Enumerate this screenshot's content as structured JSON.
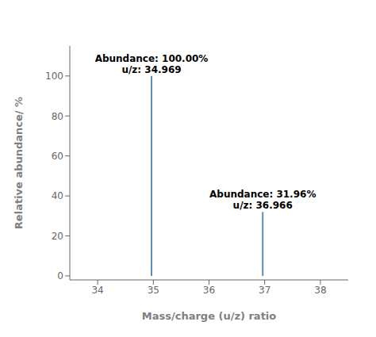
{
  "chart_data": {
    "type": "stem",
    "x": [
      34.969,
      36.966
    ],
    "values": [
      100.0,
      31.96
    ],
    "color": "#5b8db8",
    "annotations": [
      "Abundance: 100.00%\nu/z: 34.969",
      "Abundance: 31.96%\nu/z: 36.966"
    ],
    "xlabel": "Mass/charge (u/z)  ratio",
    "ylabel": "Relative abundance/ %",
    "xlim": [
      33.5,
      38.5
    ],
    "xticks": [
      34,
      35,
      36,
      37,
      38
    ],
    "ylim": [
      -2,
      115
    ],
    "yticks": [
      0,
      20,
      40,
      60,
      80,
      100
    ],
    "grid": false
  }
}
